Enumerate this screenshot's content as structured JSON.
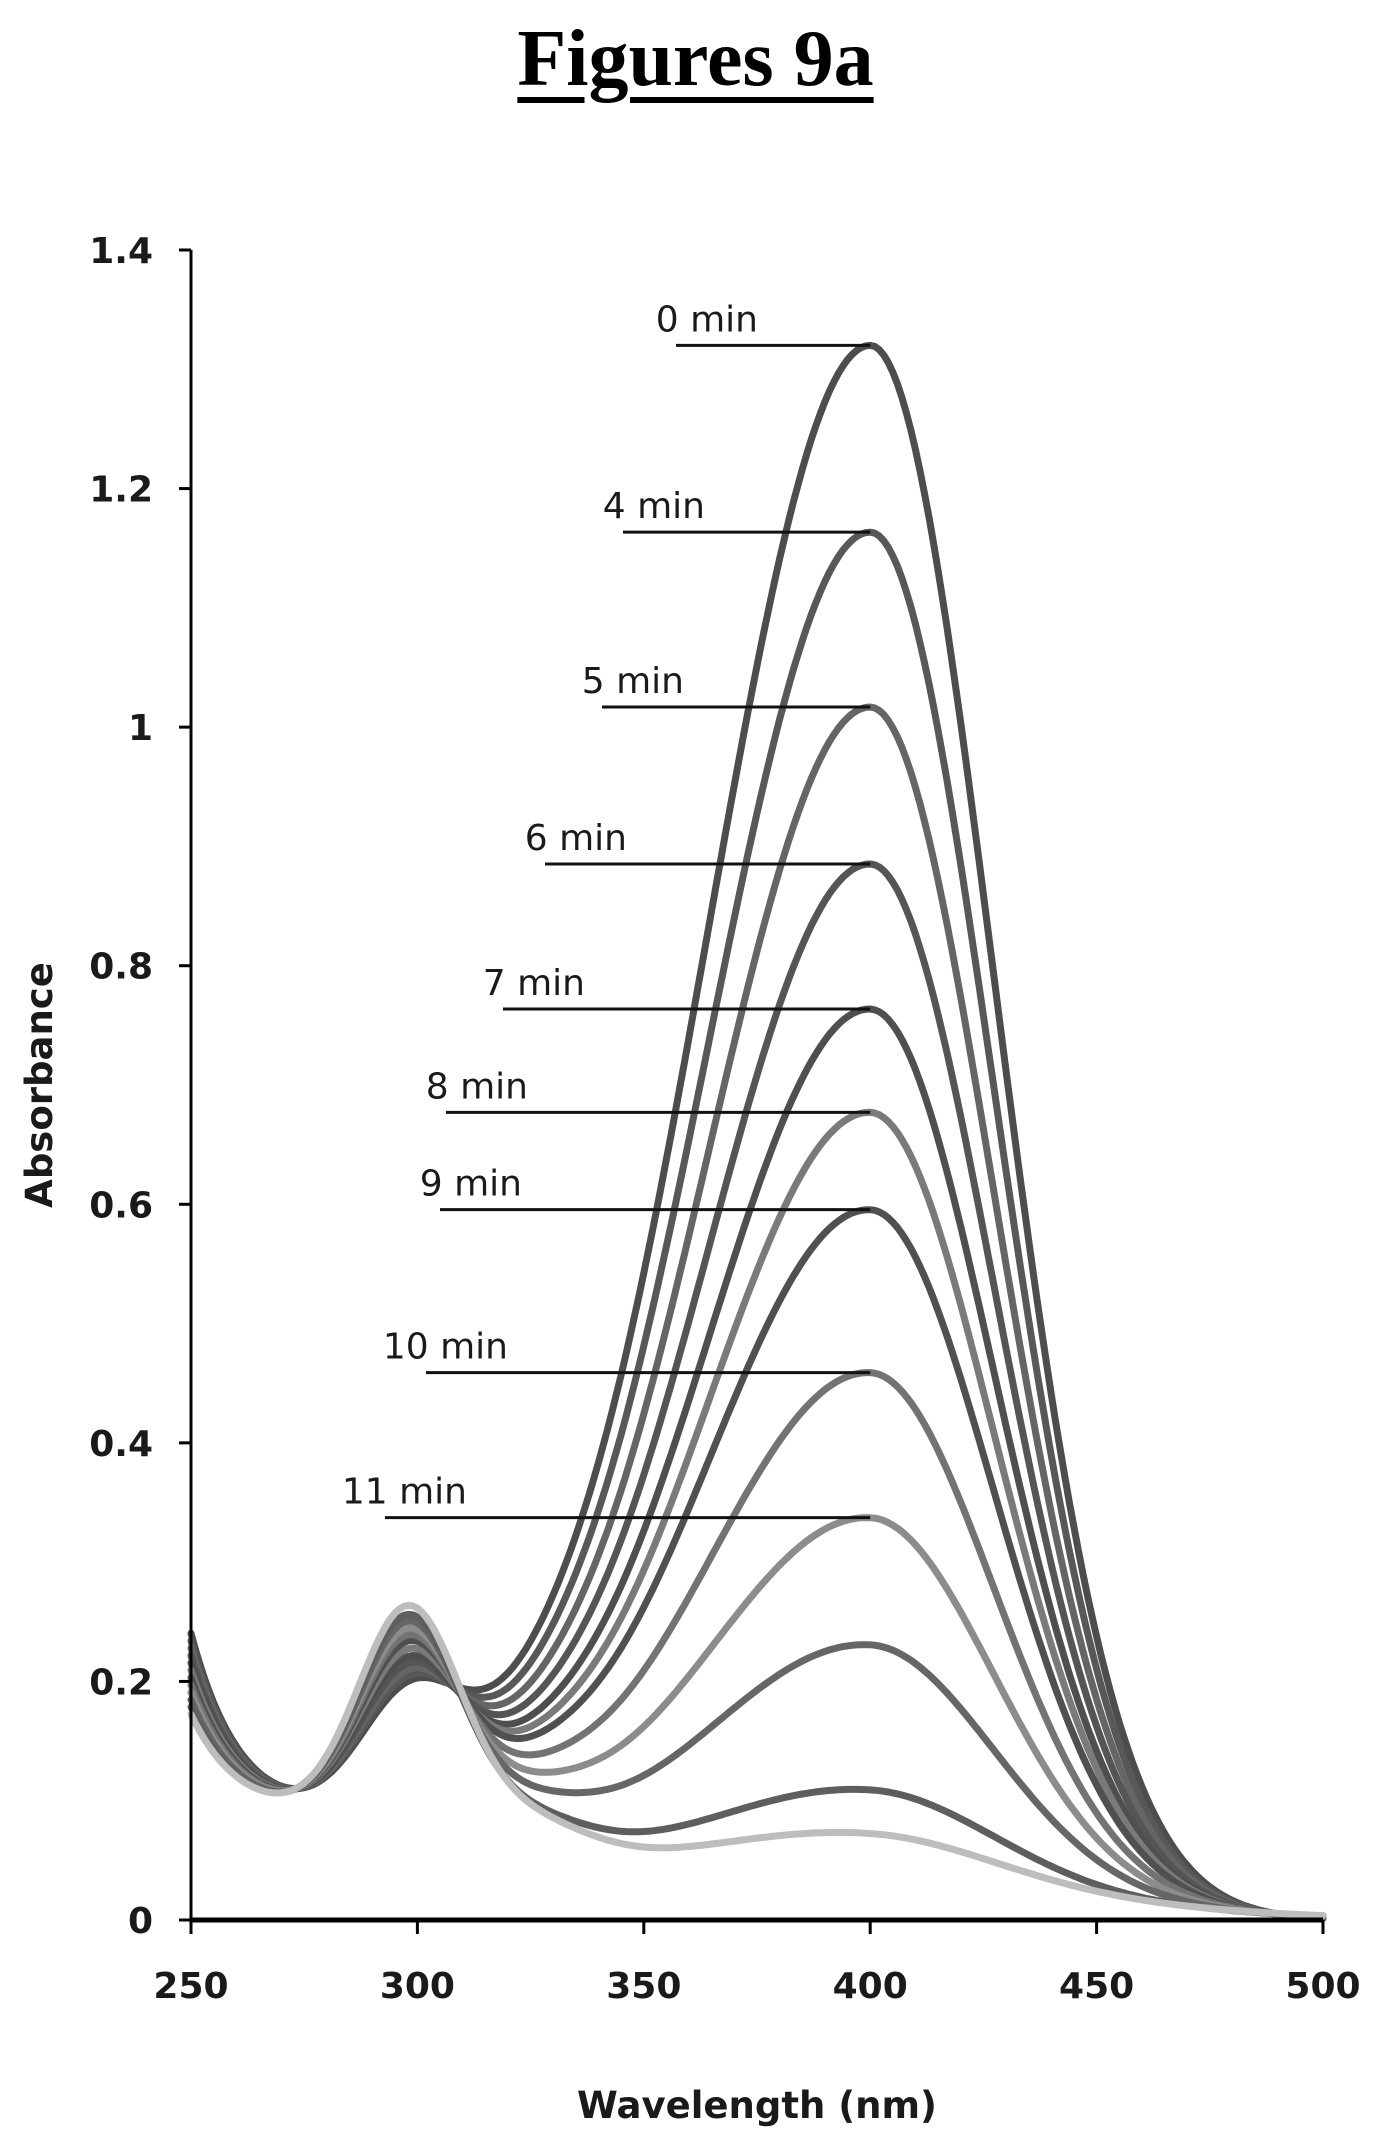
{
  "figure_title": "Figures 9a",
  "chart_data": {
    "type": "line",
    "title": "",
    "xlabel": "Wavelength (nm)",
    "ylabel": "Absorbance",
    "xlim": [
      250,
      500
    ],
    "ylim": [
      0,
      1.4
    ],
    "xticks": [
      "250",
      "300",
      "350",
      "400",
      "450",
      "500"
    ],
    "yticks": [
      "0",
      "0.2",
      "0.4",
      "0.6",
      "0.8",
      "1",
      "1.2",
      "1.4"
    ],
    "peak_wavelength": 400,
    "series": [
      {
        "name": "0 min",
        "peak": 1.32,
        "color": "#4d4d4d"
      },
      {
        "name": "4 min",
        "peak": 1.16,
        "color": "#585858"
      },
      {
        "name": "5 min",
        "peak": 1.01,
        "color": "#656565"
      },
      {
        "name": "6 min",
        "peak": 0.875,
        "color": "#555555"
      },
      {
        "name": "7 min",
        "peak": 0.75,
        "color": "#4f4f4f"
      },
      {
        "name": "8 min",
        "peak": 0.66,
        "color": "#7a7a7a"
      },
      {
        "name": "9 min",
        "peak": 0.575,
        "color": "#505050"
      },
      {
        "name": "10 min",
        "peak": 0.435,
        "color": "#737373"
      },
      {
        "name": "11 min",
        "peak": 0.31,
        "color": "#8c8c8c"
      },
      {
        "peak": 0.2,
        "color": "#666666"
      },
      {
        "peak": 0.075,
        "color": "#5e5e5e"
      },
      {
        "peak": 0.035,
        "color": "#bdbdbd"
      }
    ],
    "annotations": [
      {
        "text": "0 min",
        "series": "0 min"
      },
      {
        "text": "4 min",
        "series": "4 min"
      },
      {
        "text": "5 min",
        "series": "5 min"
      },
      {
        "text": "6 min",
        "series": "6 min"
      },
      {
        "text": "7 min",
        "series": "7 min"
      },
      {
        "text": "8 min",
        "series": "8 min"
      },
      {
        "text": "9 min",
        "series": "9 min"
      },
      {
        "text": "10 min",
        "series": "10 min"
      },
      {
        "text": "11 min",
        "series": "11 min"
      }
    ],
    "grid": false,
    "legend": "inline annotations"
  }
}
